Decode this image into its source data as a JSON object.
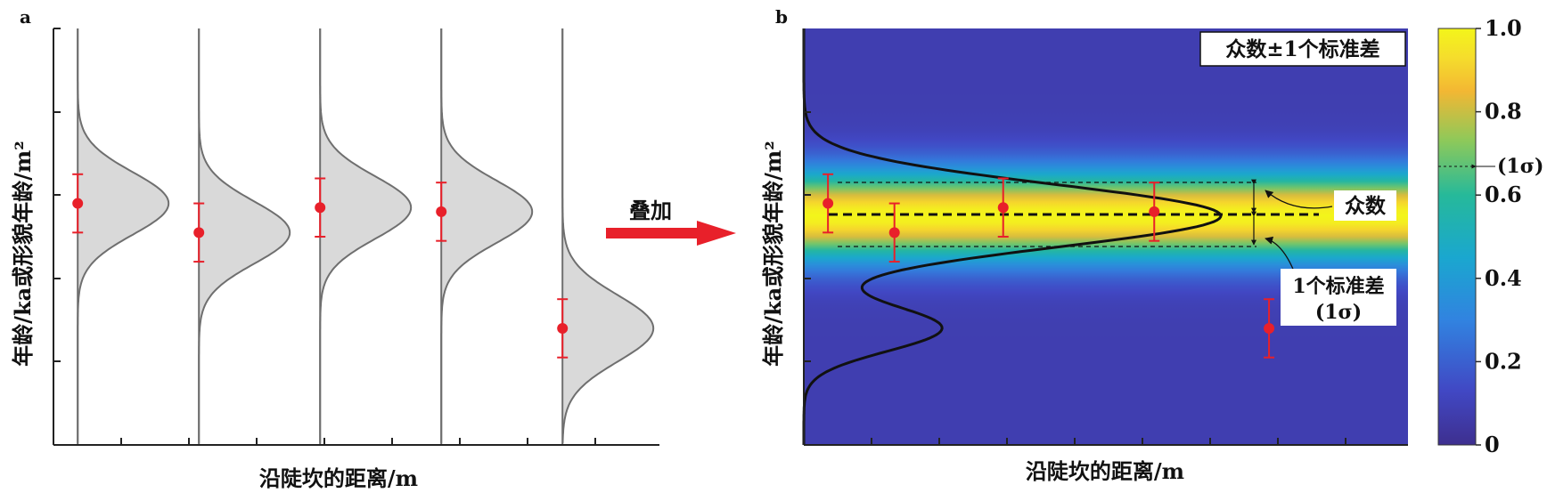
{
  "chart_data": [
    {
      "panel": "a",
      "type": "line",
      "xlabel": "沿陡坎的距离/m",
      "ylabel": "年龄/ka或形貌年龄/m²",
      "ylim": [
        0,
        10
      ],
      "xlim": [
        0,
        10
      ],
      "series": [
        {
          "baseline_x": 0.4,
          "mean": 5.8,
          "sigma": 0.75,
          "height": 1.5
        },
        {
          "baseline_x": 2.4,
          "mean": 5.1,
          "sigma": 0.75,
          "height": 1.5
        },
        {
          "baseline_x": 4.4,
          "mean": 5.7,
          "sigma": 0.75,
          "height": 1.5
        },
        {
          "baseline_x": 6.4,
          "mean": 5.6,
          "sigma": 0.75,
          "height": 1.5
        },
        {
          "baseline_x": 8.4,
          "mean": 2.8,
          "sigma": 0.8,
          "height": 1.5
        }
      ],
      "points": [
        {
          "x": 0.4,
          "y": 5.8,
          "err": 0.7
        },
        {
          "x": 2.4,
          "y": 5.1,
          "err": 0.7
        },
        {
          "x": 4.4,
          "y": 5.7,
          "err": 0.7
        },
        {
          "x": 6.4,
          "y": 5.6,
          "err": 0.7
        },
        {
          "x": 8.4,
          "y": 2.8,
          "err": 0.7
        }
      ]
    },
    {
      "panel": "b",
      "type": "heatmap",
      "xlabel": "沿陡坎的距离/m",
      "ylabel": "年龄/ka或形貌年龄/m²",
      "ylim": [
        0,
        10
      ],
      "xlim": [
        0,
        10
      ],
      "mode": 5.5,
      "sigma": 0.75,
      "colorbar": {
        "min": 0,
        "max": 1.0,
        "ticks": [
          0,
          0.2,
          0.4,
          0.6,
          0.8,
          1.0
        ],
        "sigma_level": 0.67
      },
      "points": [
        {
          "x": 0.4,
          "y": 5.8,
          "err": 0.7
        },
        {
          "x": 1.5,
          "y": 5.1,
          "err": 0.7
        },
        {
          "x": 3.3,
          "y": 5.7,
          "err": 0.7
        },
        {
          "x": 5.8,
          "y": 5.6,
          "err": 0.7
        },
        {
          "x": 7.7,
          "y": 2.8,
          "err": 0.7
        }
      ],
      "pdf_curve": {
        "max_x": 6.9
      }
    }
  ],
  "labels": {
    "panel_a": "a",
    "panel_b": "b",
    "arrow_label": "叠加",
    "legend_text": "众数±1个标准差",
    "mode_label": "众数",
    "std_label_line1": "1个标准差",
    "std_label_line2": "(1σ)",
    "colorbar_sigma_label": "(1σ)"
  },
  "colors": {
    "points": "#e8202a",
    "arrow": "#e8202a",
    "dist_fill": "#d9d9d9",
    "dist_line": "#6f6f6f"
  }
}
